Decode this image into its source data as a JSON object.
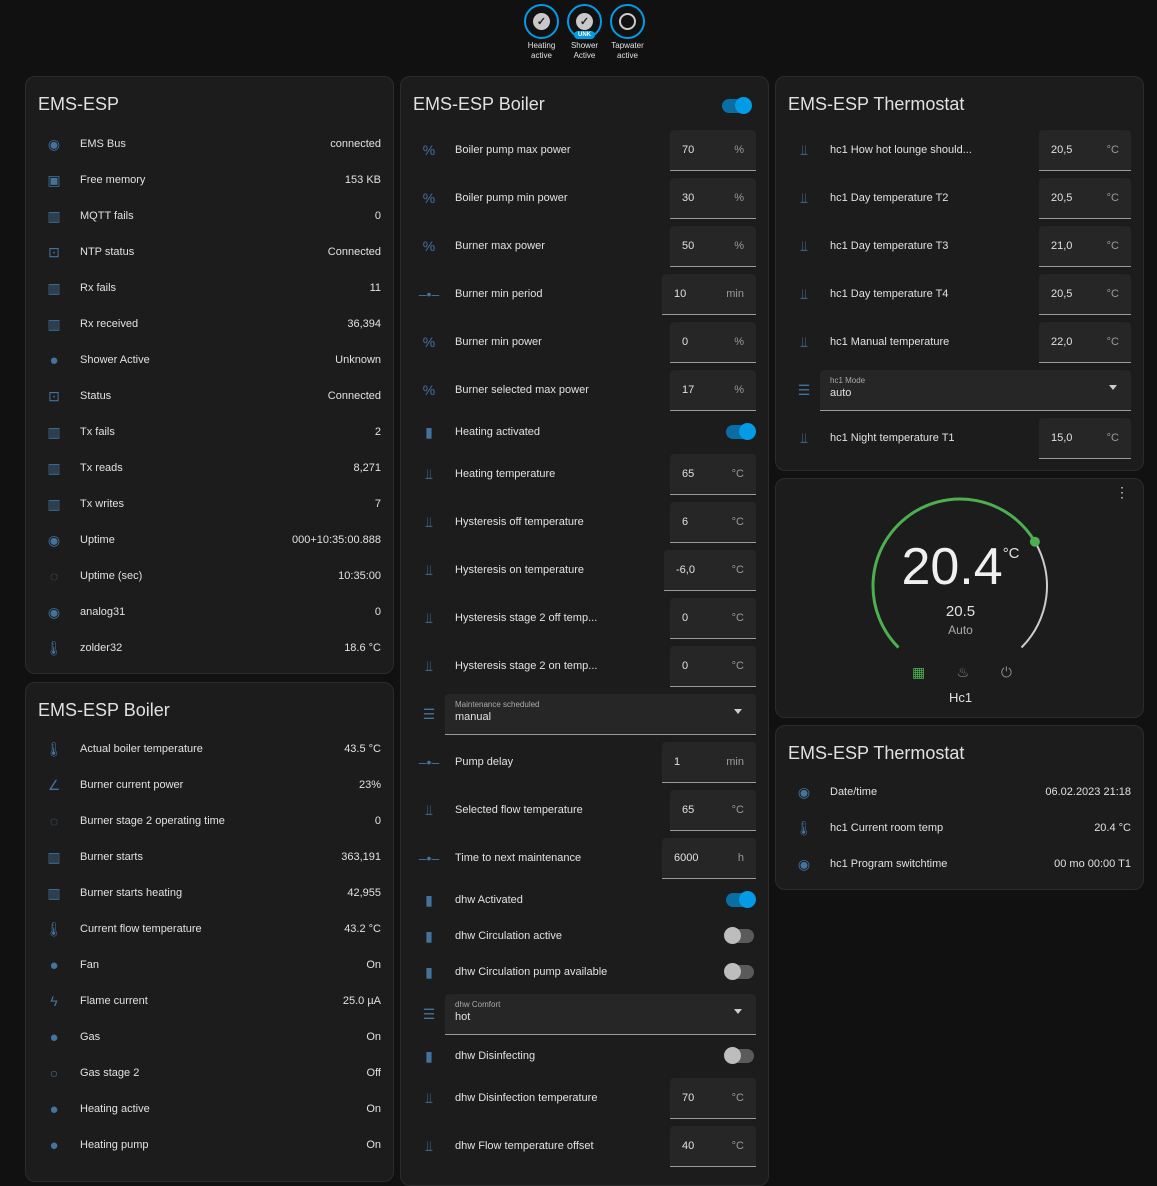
{
  "badges": [
    {
      "label": "Heating active",
      "state": "on"
    },
    {
      "label": "Shower Active",
      "state": "on",
      "tag": "UNK"
    },
    {
      "label": "Tapwater active",
      "state": "off"
    }
  ],
  "ems_esp": {
    "title": "EMS-ESP",
    "rows": [
      {
        "icon": "eye-icon",
        "name": "EMS Bus",
        "value": "connected"
      },
      {
        "icon": "chip-icon",
        "name": "Free memory",
        "value": "153 KB"
      },
      {
        "icon": "counter-icon",
        "name": "MQTT fails",
        "value": "0"
      },
      {
        "icon": "monitor-check-icon",
        "name": "NTP status",
        "value": "Connected"
      },
      {
        "icon": "counter-icon",
        "name": "Rx fails",
        "value": "11"
      },
      {
        "icon": "counter-icon",
        "name": "Rx received",
        "value": "36,394"
      },
      {
        "icon": "check-circle-icon",
        "name": "Shower Active",
        "value": "Unknown"
      },
      {
        "icon": "monitor-check-icon",
        "name": "Status",
        "value": "Connected"
      },
      {
        "icon": "counter-icon",
        "name": "Tx fails",
        "value": "2"
      },
      {
        "icon": "counter-icon",
        "name": "Tx reads",
        "value": "8,271"
      },
      {
        "icon": "counter-icon",
        "name": "Tx writes",
        "value": "7"
      },
      {
        "icon": "eye-icon",
        "name": "Uptime",
        "value": "000+10:35:00.888"
      },
      {
        "icon": "timer-icon",
        "name": "Uptime (sec)",
        "value": "10:35:00"
      },
      {
        "icon": "eye-icon",
        "name": "analog31",
        "value": "0"
      },
      {
        "icon": "thermometer-icon",
        "name": "zolder32",
        "value": "18.6 °C"
      }
    ]
  },
  "boiler_sensors": {
    "title": "EMS-ESP Boiler",
    "rows": [
      {
        "icon": "thermometer-icon",
        "name": "Actual boiler temperature",
        "value": "43.5 °C"
      },
      {
        "icon": "angle-icon",
        "name": "Burner current power",
        "value": "23%"
      },
      {
        "icon": "timer-icon",
        "name": "Burner stage 2 operating time",
        "value": "0"
      },
      {
        "icon": "counter-icon",
        "name": "Burner starts",
        "value": "363,191"
      },
      {
        "icon": "counter-icon",
        "name": "Burner starts heating",
        "value": "42,955"
      },
      {
        "icon": "thermometer-icon",
        "name": "Current flow temperature",
        "value": "43.2 °C"
      },
      {
        "icon": "check-circle-icon",
        "name": "Fan",
        "value": "On"
      },
      {
        "icon": "flash-icon",
        "name": "Flame current",
        "value": "25.0 µA"
      },
      {
        "icon": "check-circle-icon",
        "name": "Gas",
        "value": "On"
      },
      {
        "icon": "circle-outline-icon",
        "name": "Gas stage 2",
        "value": "Off"
      },
      {
        "icon": "check-circle-icon",
        "name": "Heating active",
        "value": "On"
      },
      {
        "icon": "check-circle-icon",
        "name": "Heating pump",
        "value": "On"
      }
    ]
  },
  "boiler_controls": {
    "title": "EMS-ESP Boiler",
    "header_toggle": true,
    "rows": [
      {
        "type": "num",
        "icon": "percent-icon",
        "name": "Boiler pump max power",
        "value": "70",
        "unit": "%"
      },
      {
        "type": "num",
        "icon": "percent-icon",
        "name": "Boiler pump min power",
        "value": "30",
        "unit": "%"
      },
      {
        "type": "num",
        "icon": "percent-icon",
        "name": "Burner max power",
        "value": "50",
        "unit": "%"
      },
      {
        "type": "num",
        "icon": "slider-icon",
        "name": "Burner min period",
        "value": "10",
        "unit": "min"
      },
      {
        "type": "num",
        "icon": "percent-icon",
        "name": "Burner min power",
        "value": "0",
        "unit": "%"
      },
      {
        "type": "num",
        "icon": "percent-icon",
        "name": "Burner selected max power",
        "value": "17",
        "unit": "%"
      },
      {
        "type": "toggle",
        "icon": "switch-icon",
        "name": "Heating activated",
        "on": true
      },
      {
        "type": "num",
        "icon": "water-thermometer-icon",
        "name": "Heating temperature",
        "value": "65",
        "unit": "°C"
      },
      {
        "type": "num",
        "icon": "water-thermometer-icon",
        "name": "Hysteresis off temperature",
        "value": "6",
        "unit": "°C"
      },
      {
        "type": "num",
        "icon": "water-thermometer-icon",
        "name": "Hysteresis on temperature",
        "value": "-6,0",
        "unit": "°C"
      },
      {
        "type": "num",
        "icon": "water-thermometer-icon",
        "name": "Hysteresis stage 2 off temp...",
        "value": "0",
        "unit": "°C"
      },
      {
        "type": "num",
        "icon": "water-thermometer-icon",
        "name": "Hysteresis stage 2 on temp...",
        "value": "0",
        "unit": "°C"
      },
      {
        "type": "select",
        "icon": "list-icon",
        "label": "Maintenance scheduled",
        "value": "manual"
      },
      {
        "type": "num",
        "icon": "slider-icon",
        "name": "Pump delay",
        "value": "1",
        "unit": "min"
      },
      {
        "type": "num",
        "icon": "water-thermometer-icon",
        "name": "Selected flow temperature",
        "value": "65",
        "unit": "°C"
      },
      {
        "type": "num",
        "icon": "slider-icon",
        "name": "Time to next maintenance",
        "value": "6000",
        "unit": "h"
      },
      {
        "type": "toggle",
        "icon": "switch-icon",
        "name": "dhw Activated",
        "on": true
      },
      {
        "type": "toggle",
        "icon": "switch-icon",
        "name": "dhw Circulation active",
        "on": false
      },
      {
        "type": "toggle",
        "icon": "switch-icon",
        "name": "dhw Circulation pump available",
        "on": false
      },
      {
        "type": "select",
        "icon": "list-icon",
        "label": "dhw Comfort",
        "value": "hot"
      },
      {
        "type": "toggle",
        "icon": "switch-icon",
        "name": "dhw Disinfecting",
        "on": false
      },
      {
        "type": "num",
        "icon": "water-thermometer-icon",
        "name": "dhw Disinfection temperature",
        "value": "70",
        "unit": "°C"
      },
      {
        "type": "num",
        "icon": "water-thermometer-icon",
        "name": "dhw Flow temperature offset",
        "value": "40",
        "unit": "°C"
      }
    ]
  },
  "thermostat_controls": {
    "title": "EMS-ESP Thermostat",
    "rows": [
      {
        "type": "num",
        "icon": "water-thermometer-icon",
        "name": "hc1 How hot lounge should...",
        "value": "20,5",
        "unit": "°C"
      },
      {
        "type": "num",
        "icon": "water-thermometer-icon",
        "name": "hc1 Day temperature T2",
        "value": "20,5",
        "unit": "°C"
      },
      {
        "type": "num",
        "icon": "water-thermometer-icon",
        "name": "hc1 Day temperature T3",
        "value": "21,0",
        "unit": "°C"
      },
      {
        "type": "num",
        "icon": "water-thermometer-icon",
        "name": "hc1 Day temperature T4",
        "value": "20,5",
        "unit": "°C"
      },
      {
        "type": "num",
        "icon": "water-thermometer-icon",
        "name": "hc1 Manual temperature",
        "value": "22,0",
        "unit": "°C"
      },
      {
        "type": "select",
        "icon": "list-icon",
        "label": "hc1 Mode",
        "value": "auto"
      },
      {
        "type": "num",
        "icon": "water-thermometer-icon",
        "name": "hc1 Night temperature T1",
        "value": "15,0",
        "unit": "°C"
      }
    ]
  },
  "thermostat_dial": {
    "current": "20.4",
    "unit": "°C",
    "target": "20.5",
    "mode": "Auto",
    "name": "Hc1",
    "target_fraction": 0.72,
    "accent": "#4caf50"
  },
  "thermostat_sensors": {
    "title": "EMS-ESP Thermostat",
    "rows": [
      {
        "icon": "eye-icon",
        "name": "Date/time",
        "value": "06.02.2023 21:18"
      },
      {
        "icon": "thermometer-icon",
        "name": "hc1 Current room temp",
        "value": "20.4 °C"
      },
      {
        "icon": "eye-icon",
        "name": "hc1 Program switchtime",
        "value": "00 mo 00:00 T1"
      }
    ]
  }
}
